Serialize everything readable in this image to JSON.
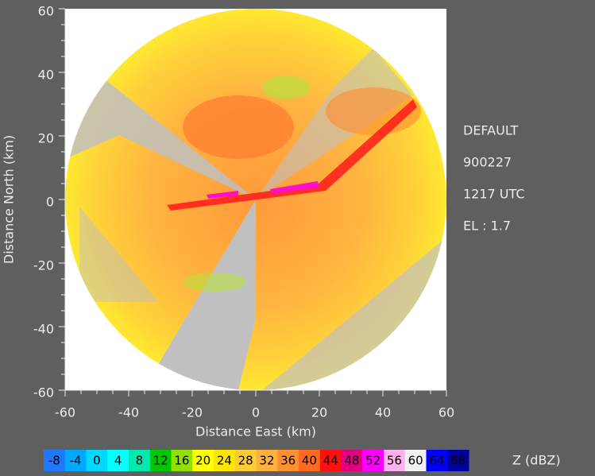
{
  "chart_data": {
    "type": "ppi",
    "x_label": "Distance East   (km)",
    "y_label": "Distance North   (km)",
    "xlim": [
      -60,
      60
    ],
    "ylim": [
      -60,
      60
    ],
    "xticks": [
      -60,
      -40,
      -20,
      0,
      20,
      40,
      60
    ],
    "yticks": [
      -60,
      -40,
      -20,
      0,
      20,
      40,
      60
    ],
    "annotations": [
      "DEFAULT",
      "900227",
      "1217 UTC",
      "EL : 1.7"
    ],
    "colorbar": {
      "label": "Z   (dBZ)",
      "ticks": [
        -8,
        -4,
        0,
        4,
        8,
        12,
        16,
        20,
        24,
        28,
        32,
        36,
        40,
        44,
        48,
        52,
        56,
        60,
        64,
        68
      ],
      "colors": [
        "#1e78ff",
        "#00a8ff",
        "#00d8ff",
        "#00ffff",
        "#00e8b0",
        "#00c800",
        "#90e000",
        "#ffff00",
        "#ffe600",
        "#ffcc33",
        "#ffb040",
        "#ff9030",
        "#ff6a20",
        "#ff1010",
        "#e00080",
        "#ff00ff",
        "#ffb0f0",
        "#f0f0f0",
        "#0000ff",
        "#0000a0"
      ]
    }
  }
}
